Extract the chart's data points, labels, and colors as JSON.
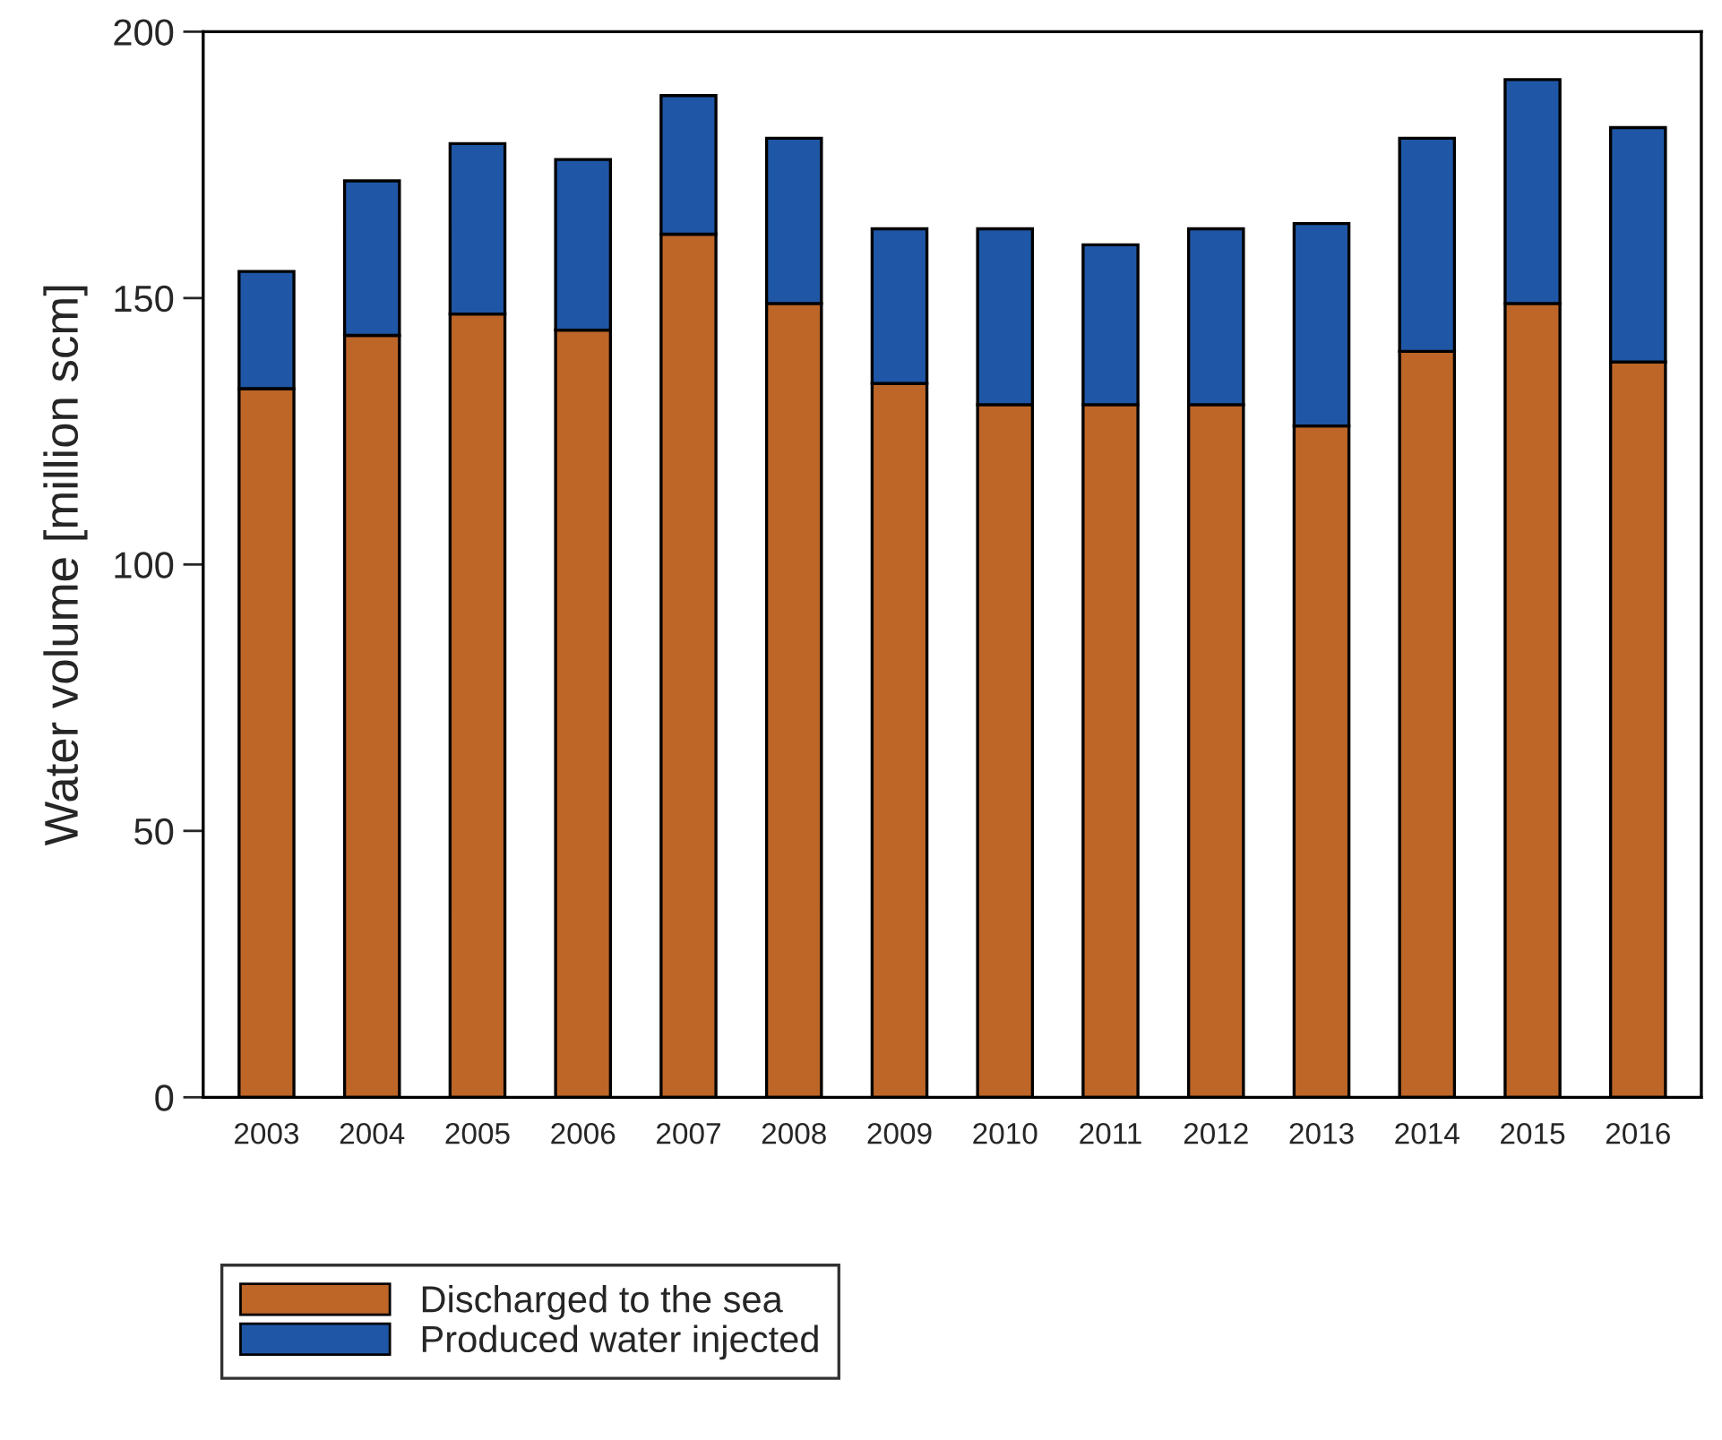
{
  "chart_data": {
    "type": "bar",
    "ylabel": "Water volume [million scm]",
    "categories": [
      "2003",
      "2004",
      "2005",
      "2006",
      "2007",
      "2008",
      "2009",
      "2010",
      "2011",
      "2012",
      "2013",
      "2014",
      "2015",
      "2016"
    ],
    "stacked": true,
    "series": [
      {
        "name": "Discharged to the sea",
        "color": "#bd6628",
        "values": [
          133,
          143,
          147,
          144,
          162,
          149,
          134,
          130,
          130,
          130,
          126,
          140,
          149,
          138
        ]
      },
      {
        "name": "Produced water injected",
        "color": "#1f57a6",
        "values": [
          22,
          29,
          32,
          32,
          26,
          31,
          29,
          33,
          30,
          33,
          38,
          40,
          42,
          44
        ]
      }
    ],
    "ylim": [
      0,
      200
    ],
    "yticks": [
      0,
      50,
      100,
      150,
      200
    ],
    "grid": false,
    "legend": "bottom left"
  }
}
